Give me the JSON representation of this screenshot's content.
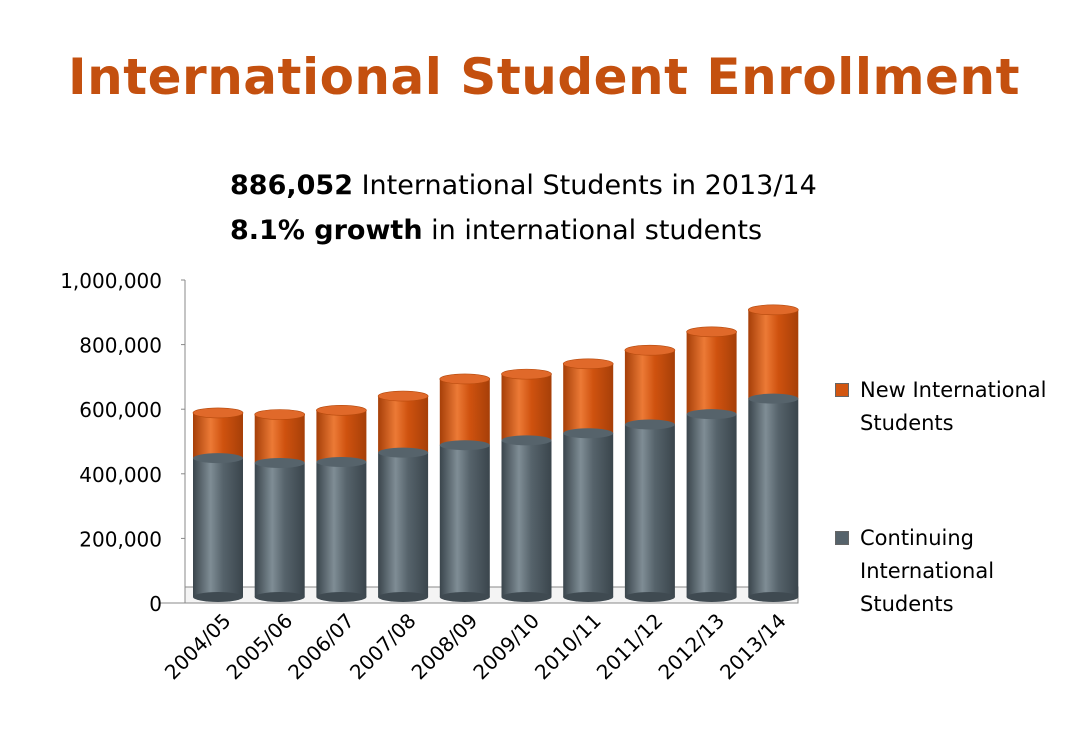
{
  "title": "International Student Enrollment",
  "subtitle": {
    "line1_bold": "886,052",
    "line1_rest": " International Students in 2013/14",
    "line2_bold": "8.1% growth",
    "line2_rest": " in international students"
  },
  "colors": {
    "title": "#c4500f",
    "new": "#d25611",
    "continuing": "#56636b"
  },
  "chart_data": {
    "type": "bar",
    "stacked": true,
    "categories": [
      "2004/05",
      "2005/06",
      "2006/07",
      "2007/08",
      "2008/09",
      "2009/10",
      "2010/11",
      "2011/12",
      "2012/13",
      "2013/14"
    ],
    "series": [
      {
        "name": "Continuing International Students",
        "values": [
          430000,
          415000,
          418000,
          447000,
          470000,
          485000,
          507000,
          534000,
          566000,
          614000
        ]
      },
      {
        "name": "New International Students",
        "values": [
          140000,
          150000,
          160000,
          175000,
          205000,
          205000,
          215000,
          230000,
          255000,
          275000
        ]
      }
    ],
    "y_ticks": [
      "0",
      "200,000",
      "400,000",
      "600,000",
      "800,000",
      "1,000,000"
    ],
    "ylim": [
      0,
      1000000
    ],
    "legend": "right",
    "grid": false
  },
  "legend": {
    "new_line1": "New International",
    "new_line2": "Students",
    "cont_line1": "Continuing",
    "cont_line2": "International",
    "cont_line3": "Students"
  }
}
